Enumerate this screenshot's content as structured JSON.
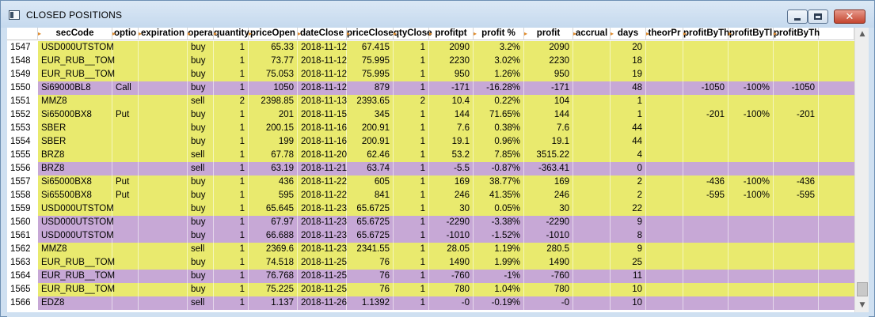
{
  "window": {
    "title": "CLOSED POSITIONS",
    "controls": {
      "minimize_icon": "minimize-icon",
      "maximize_icon": "maximize-icon",
      "close_glyph": "✕"
    }
  },
  "table": {
    "columns": [
      {
        "key": "num",
        "label": ""
      },
      {
        "key": "secCode",
        "label": "secCode"
      },
      {
        "key": "option",
        "label": "optio"
      },
      {
        "key": "expiration",
        "label": "expiration"
      },
      {
        "key": "operation",
        "label": "opera"
      },
      {
        "key": "quantity",
        "label": "quantity"
      },
      {
        "key": "priceOpen",
        "label": "priceOpen"
      },
      {
        "key": "dateClose",
        "label": "dateClose"
      },
      {
        "key": "priceClose",
        "label": "priceClose"
      },
      {
        "key": "qtyClose",
        "label": "qtyClose"
      },
      {
        "key": "profitpt",
        "label": "profitpt"
      },
      {
        "key": "profitPct",
        "label": "profit %"
      },
      {
        "key": "profit",
        "label": "profit"
      },
      {
        "key": "accrual",
        "label": "accrual"
      },
      {
        "key": "days",
        "label": "days"
      },
      {
        "key": "theorPr",
        "label": "theorPr"
      },
      {
        "key": "profitByTh1",
        "label": "profitByTh"
      },
      {
        "key": "profitByTh2",
        "label": "profitByTl"
      },
      {
        "key": "profitByTh3",
        "label": "profitByTh"
      },
      {
        "key": "extra",
        "label": ""
      }
    ],
    "rows": [
      {
        "num": "1547",
        "color": "yellow",
        "secCode": "USD000UTSTOM",
        "option": "",
        "expiration": "",
        "operation": "buy",
        "quantity": "1",
        "priceOpen": "65.33",
        "dateClose": "2018-11-12",
        "priceClose": "67.415",
        "qtyClose": "1",
        "profitpt": "2090",
        "profitPct": "3.2%",
        "profit": "2090",
        "accrual": "",
        "days": "20",
        "theorPr": "",
        "profitByTh1": "",
        "profitByTh2": "",
        "profitByTh3": ""
      },
      {
        "num": "1548",
        "color": "yellow",
        "secCode": "EUR_RUB__TOM",
        "option": "",
        "expiration": "",
        "operation": "buy",
        "quantity": "1",
        "priceOpen": "73.77",
        "dateClose": "2018-11-12",
        "priceClose": "75.995",
        "qtyClose": "1",
        "profitpt": "2230",
        "profitPct": "3.02%",
        "profit": "2230",
        "accrual": "",
        "days": "18",
        "theorPr": "",
        "profitByTh1": "",
        "profitByTh2": "",
        "profitByTh3": ""
      },
      {
        "num": "1549",
        "color": "yellow",
        "secCode": "EUR_RUB__TOM",
        "option": "",
        "expiration": "",
        "operation": "buy",
        "quantity": "1",
        "priceOpen": "75.053",
        "dateClose": "2018-11-12",
        "priceClose": "75.995",
        "qtyClose": "1",
        "profitpt": "950",
        "profitPct": "1.26%",
        "profit": "950",
        "accrual": "",
        "days": "19",
        "theorPr": "",
        "profitByTh1": "",
        "profitByTh2": "",
        "profitByTh3": ""
      },
      {
        "num": "1550",
        "color": "purple",
        "secCode": "Si69000BL8",
        "option": "Call",
        "expiration": "",
        "operation": "buy",
        "quantity": "1",
        "priceOpen": "1050",
        "dateClose": "2018-11-12",
        "priceClose": "879",
        "qtyClose": "1",
        "profitpt": "-171",
        "profitPct": "-16.28%",
        "profit": "-171",
        "accrual": "",
        "days": "48",
        "theorPr": "",
        "profitByTh1": "-1050",
        "profitByTh2": "-100%",
        "profitByTh3": "-1050"
      },
      {
        "num": "1551",
        "color": "yellow",
        "secCode": "MMZ8",
        "option": "",
        "expiration": "",
        "operation": "sell",
        "quantity": "2",
        "priceOpen": "2398.85",
        "dateClose": "2018-11-13",
        "priceClose": "2393.65",
        "qtyClose": "2",
        "profitpt": "10.4",
        "profitPct": "0.22%",
        "profit": "104",
        "accrual": "",
        "days": "1",
        "theorPr": "",
        "profitByTh1": "",
        "profitByTh2": "",
        "profitByTh3": ""
      },
      {
        "num": "1552",
        "color": "yellow",
        "secCode": "Si65000BX8",
        "option": "Put",
        "expiration": "",
        "operation": "buy",
        "quantity": "1",
        "priceOpen": "201",
        "dateClose": "2018-11-15",
        "priceClose": "345",
        "qtyClose": "1",
        "profitpt": "144",
        "profitPct": "71.65%",
        "profit": "144",
        "accrual": "",
        "days": "1",
        "theorPr": "",
        "profitByTh1": "-201",
        "profitByTh2": "-100%",
        "profitByTh3": "-201"
      },
      {
        "num": "1553",
        "color": "yellow",
        "secCode": "SBER",
        "option": "",
        "expiration": "",
        "operation": "buy",
        "quantity": "1",
        "priceOpen": "200.15",
        "dateClose": "2018-11-16",
        "priceClose": "200.91",
        "qtyClose": "1",
        "profitpt": "7.6",
        "profitPct": "0.38%",
        "profit": "7.6",
        "accrual": "",
        "days": "44",
        "theorPr": "",
        "profitByTh1": "",
        "profitByTh2": "",
        "profitByTh3": ""
      },
      {
        "num": "1554",
        "color": "yellow",
        "secCode": "SBER",
        "option": "",
        "expiration": "",
        "operation": "buy",
        "quantity": "1",
        "priceOpen": "199",
        "dateClose": "2018-11-16",
        "priceClose": "200.91",
        "qtyClose": "1",
        "profitpt": "19.1",
        "profitPct": "0.96%",
        "profit": "19.1",
        "accrual": "",
        "days": "44",
        "theorPr": "",
        "profitByTh1": "",
        "profitByTh2": "",
        "profitByTh3": ""
      },
      {
        "num": "1555",
        "color": "yellow",
        "secCode": "BRZ8",
        "option": "",
        "expiration": "",
        "operation": "sell",
        "quantity": "1",
        "priceOpen": "67.78",
        "dateClose": "2018-11-20",
        "priceClose": "62.46",
        "qtyClose": "1",
        "profitpt": "53.2",
        "profitPct": "7.85%",
        "profit": "3515.22",
        "accrual": "",
        "days": "4",
        "theorPr": "",
        "profitByTh1": "",
        "profitByTh2": "",
        "profitByTh3": ""
      },
      {
        "num": "1556",
        "color": "purple",
        "secCode": "BRZ8",
        "option": "",
        "expiration": "",
        "operation": "sell",
        "quantity": "1",
        "priceOpen": "63.19",
        "dateClose": "2018-11-21",
        "priceClose": "63.74",
        "qtyClose": "1",
        "profitpt": "-5.5",
        "profitPct": "-0.87%",
        "profit": "-363.41",
        "accrual": "",
        "days": "0",
        "theorPr": "",
        "profitByTh1": "",
        "profitByTh2": "",
        "profitByTh3": ""
      },
      {
        "num": "1557",
        "color": "yellow",
        "secCode": "Si65000BX8",
        "option": "Put",
        "expiration": "",
        "operation": "buy",
        "quantity": "1",
        "priceOpen": "436",
        "dateClose": "2018-11-22",
        "priceClose": "605",
        "qtyClose": "1",
        "profitpt": "169",
        "profitPct": "38.77%",
        "profit": "169",
        "accrual": "",
        "days": "2",
        "theorPr": "",
        "profitByTh1": "-436",
        "profitByTh2": "-100%",
        "profitByTh3": "-436"
      },
      {
        "num": "1558",
        "color": "yellow",
        "secCode": "Si65500BX8",
        "option": "Put",
        "expiration": "",
        "operation": "buy",
        "quantity": "1",
        "priceOpen": "595",
        "dateClose": "2018-11-22",
        "priceClose": "841",
        "qtyClose": "1",
        "profitpt": "246",
        "profitPct": "41.35%",
        "profit": "246",
        "accrual": "",
        "days": "2",
        "theorPr": "",
        "profitByTh1": "-595",
        "profitByTh2": "-100%",
        "profitByTh3": "-595"
      },
      {
        "num": "1559",
        "color": "yellow",
        "secCode": "USD000UTSTOM",
        "option": "",
        "expiration": "",
        "operation": "buy",
        "quantity": "1",
        "priceOpen": "65.645",
        "dateClose": "2018-11-23",
        "priceClose": "65.6725",
        "qtyClose": "1",
        "profitpt": "30",
        "profitPct": "0.05%",
        "profit": "30",
        "accrual": "",
        "days": "22",
        "theorPr": "",
        "profitByTh1": "",
        "profitByTh2": "",
        "profitByTh3": ""
      },
      {
        "num": "1560",
        "color": "purple",
        "secCode": "USD000UTSTOM",
        "option": "",
        "expiration": "",
        "operation": "buy",
        "quantity": "1",
        "priceOpen": "67.97",
        "dateClose": "2018-11-23",
        "priceClose": "65.6725",
        "qtyClose": "1",
        "profitpt": "-2290",
        "profitPct": "-3.38%",
        "profit": "-2290",
        "accrual": "",
        "days": "9",
        "theorPr": "",
        "profitByTh1": "",
        "profitByTh2": "",
        "profitByTh3": ""
      },
      {
        "num": "1561",
        "color": "purple",
        "secCode": "USD000UTSTOM",
        "option": "",
        "expiration": "",
        "operation": "buy",
        "quantity": "1",
        "priceOpen": "66.688",
        "dateClose": "2018-11-23",
        "priceClose": "65.6725",
        "qtyClose": "1",
        "profitpt": "-1010",
        "profitPct": "-1.52%",
        "profit": "-1010",
        "accrual": "",
        "days": "8",
        "theorPr": "",
        "profitByTh1": "",
        "profitByTh2": "",
        "profitByTh3": ""
      },
      {
        "num": "1562",
        "color": "yellow",
        "secCode": "MMZ8",
        "option": "",
        "expiration": "",
        "operation": "sell",
        "quantity": "1",
        "priceOpen": "2369.6",
        "dateClose": "2018-11-23",
        "priceClose": "2341.55",
        "qtyClose": "1",
        "profitpt": "28.05",
        "profitPct": "1.19%",
        "profit": "280.5",
        "accrual": "",
        "days": "9",
        "theorPr": "",
        "profitByTh1": "",
        "profitByTh2": "",
        "profitByTh3": ""
      },
      {
        "num": "1563",
        "color": "yellow",
        "secCode": "EUR_RUB__TOM",
        "option": "",
        "expiration": "",
        "operation": "buy",
        "quantity": "1",
        "priceOpen": "74.518",
        "dateClose": "2018-11-25",
        "priceClose": "76",
        "qtyClose": "1",
        "profitpt": "1490",
        "profitPct": "1.99%",
        "profit": "1490",
        "accrual": "",
        "days": "25",
        "theorPr": "",
        "profitByTh1": "",
        "profitByTh2": "",
        "profitByTh3": ""
      },
      {
        "num": "1564",
        "color": "purple",
        "secCode": "EUR_RUB__TOM",
        "option": "",
        "expiration": "",
        "operation": "buy",
        "quantity": "1",
        "priceOpen": "76.768",
        "dateClose": "2018-11-25",
        "priceClose": "76",
        "qtyClose": "1",
        "profitpt": "-760",
        "profitPct": "-1%",
        "profit": "-760",
        "accrual": "",
        "days": "11",
        "theorPr": "",
        "profitByTh1": "",
        "profitByTh2": "",
        "profitByTh3": ""
      },
      {
        "num": "1565",
        "color": "yellow",
        "secCode": "EUR_RUB__TOM",
        "option": "",
        "expiration": "",
        "operation": "buy",
        "quantity": "1",
        "priceOpen": "75.225",
        "dateClose": "2018-11-25",
        "priceClose": "76",
        "qtyClose": "1",
        "profitpt": "780",
        "profitPct": "1.04%",
        "profit": "780",
        "accrual": "",
        "days": "10",
        "theorPr": "",
        "profitByTh1": "",
        "profitByTh2": "",
        "profitByTh3": ""
      },
      {
        "num": "1566",
        "color": "purple",
        "secCode": "EDZ8",
        "option": "",
        "expiration": "",
        "operation": "sell",
        "quantity": "1",
        "priceOpen": "1.137",
        "dateClose": "2018-11-26",
        "priceClose": "1.1392",
        "qtyClose": "1",
        "profitpt": "-0",
        "profitPct": "-0.19%",
        "profit": "-0",
        "accrual": "",
        "days": "10",
        "theorPr": "",
        "profitByTh1": "",
        "profitByTh2": "",
        "profitByTh3": ""
      }
    ]
  },
  "colors": {
    "row_yellow": "#e9ea6e",
    "row_purple": "#c7a8d6",
    "header_marker": "#e08a2a"
  },
  "scrollbar": {
    "up_glyph": "▲",
    "down_glyph": "▼"
  }
}
